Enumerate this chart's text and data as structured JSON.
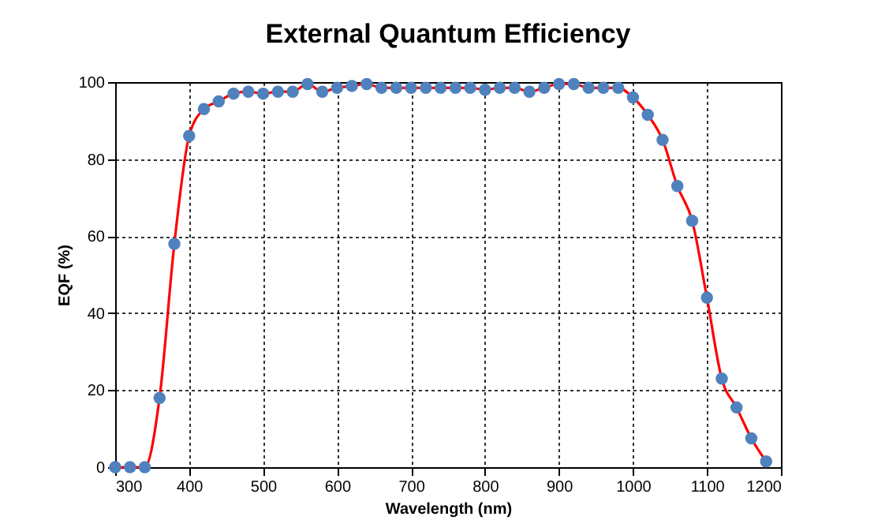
{
  "chart_data": {
    "type": "line",
    "title": "External Quantum Efficiency",
    "xlabel": "Wavelength (nm)",
    "ylabel": "EQF (%)",
    "x": [
      300,
      320,
      340,
      360,
      380,
      400,
      420,
      440,
      460,
      480,
      500,
      520,
      540,
      560,
      580,
      600,
      620,
      640,
      660,
      680,
      700,
      720,
      740,
      760,
      780,
      800,
      820,
      840,
      860,
      880,
      900,
      920,
      940,
      960,
      980,
      1000,
      1020,
      1040,
      1060,
      1080,
      1100,
      1120,
      1140,
      1160,
      1180
    ],
    "series": [
      {
        "color": "#ff0000",
        "values": [
          0,
          0,
          0,
          18,
          58,
          86,
          93,
          95,
          97,
          97.5,
          97,
          97.5,
          97.5,
          99.5,
          97.5,
          98.5,
          99,
          99.5,
          98.5,
          98.5,
          98.5,
          98.5,
          98.5,
          98.5,
          98.5,
          98,
          98.5,
          98.5,
          97.5,
          98.5,
          99.5,
          99.5,
          98.5,
          98.5,
          98.5,
          96,
          91.5,
          85,
          73,
          64,
          44,
          23,
          15.5,
          7.5,
          1.5
        ]
      }
    ],
    "xlim": [
      300,
      1200
    ],
    "xticks": [
      300,
      400,
      500,
      600,
      700,
      800,
      900,
      1000,
      1100,
      1200
    ],
    "ylim": [
      0,
      100
    ],
    "yticks": [
      0,
      20,
      40,
      60,
      80,
      100
    ],
    "grid": true,
    "marker": "circle",
    "line_style": "solid"
  }
}
